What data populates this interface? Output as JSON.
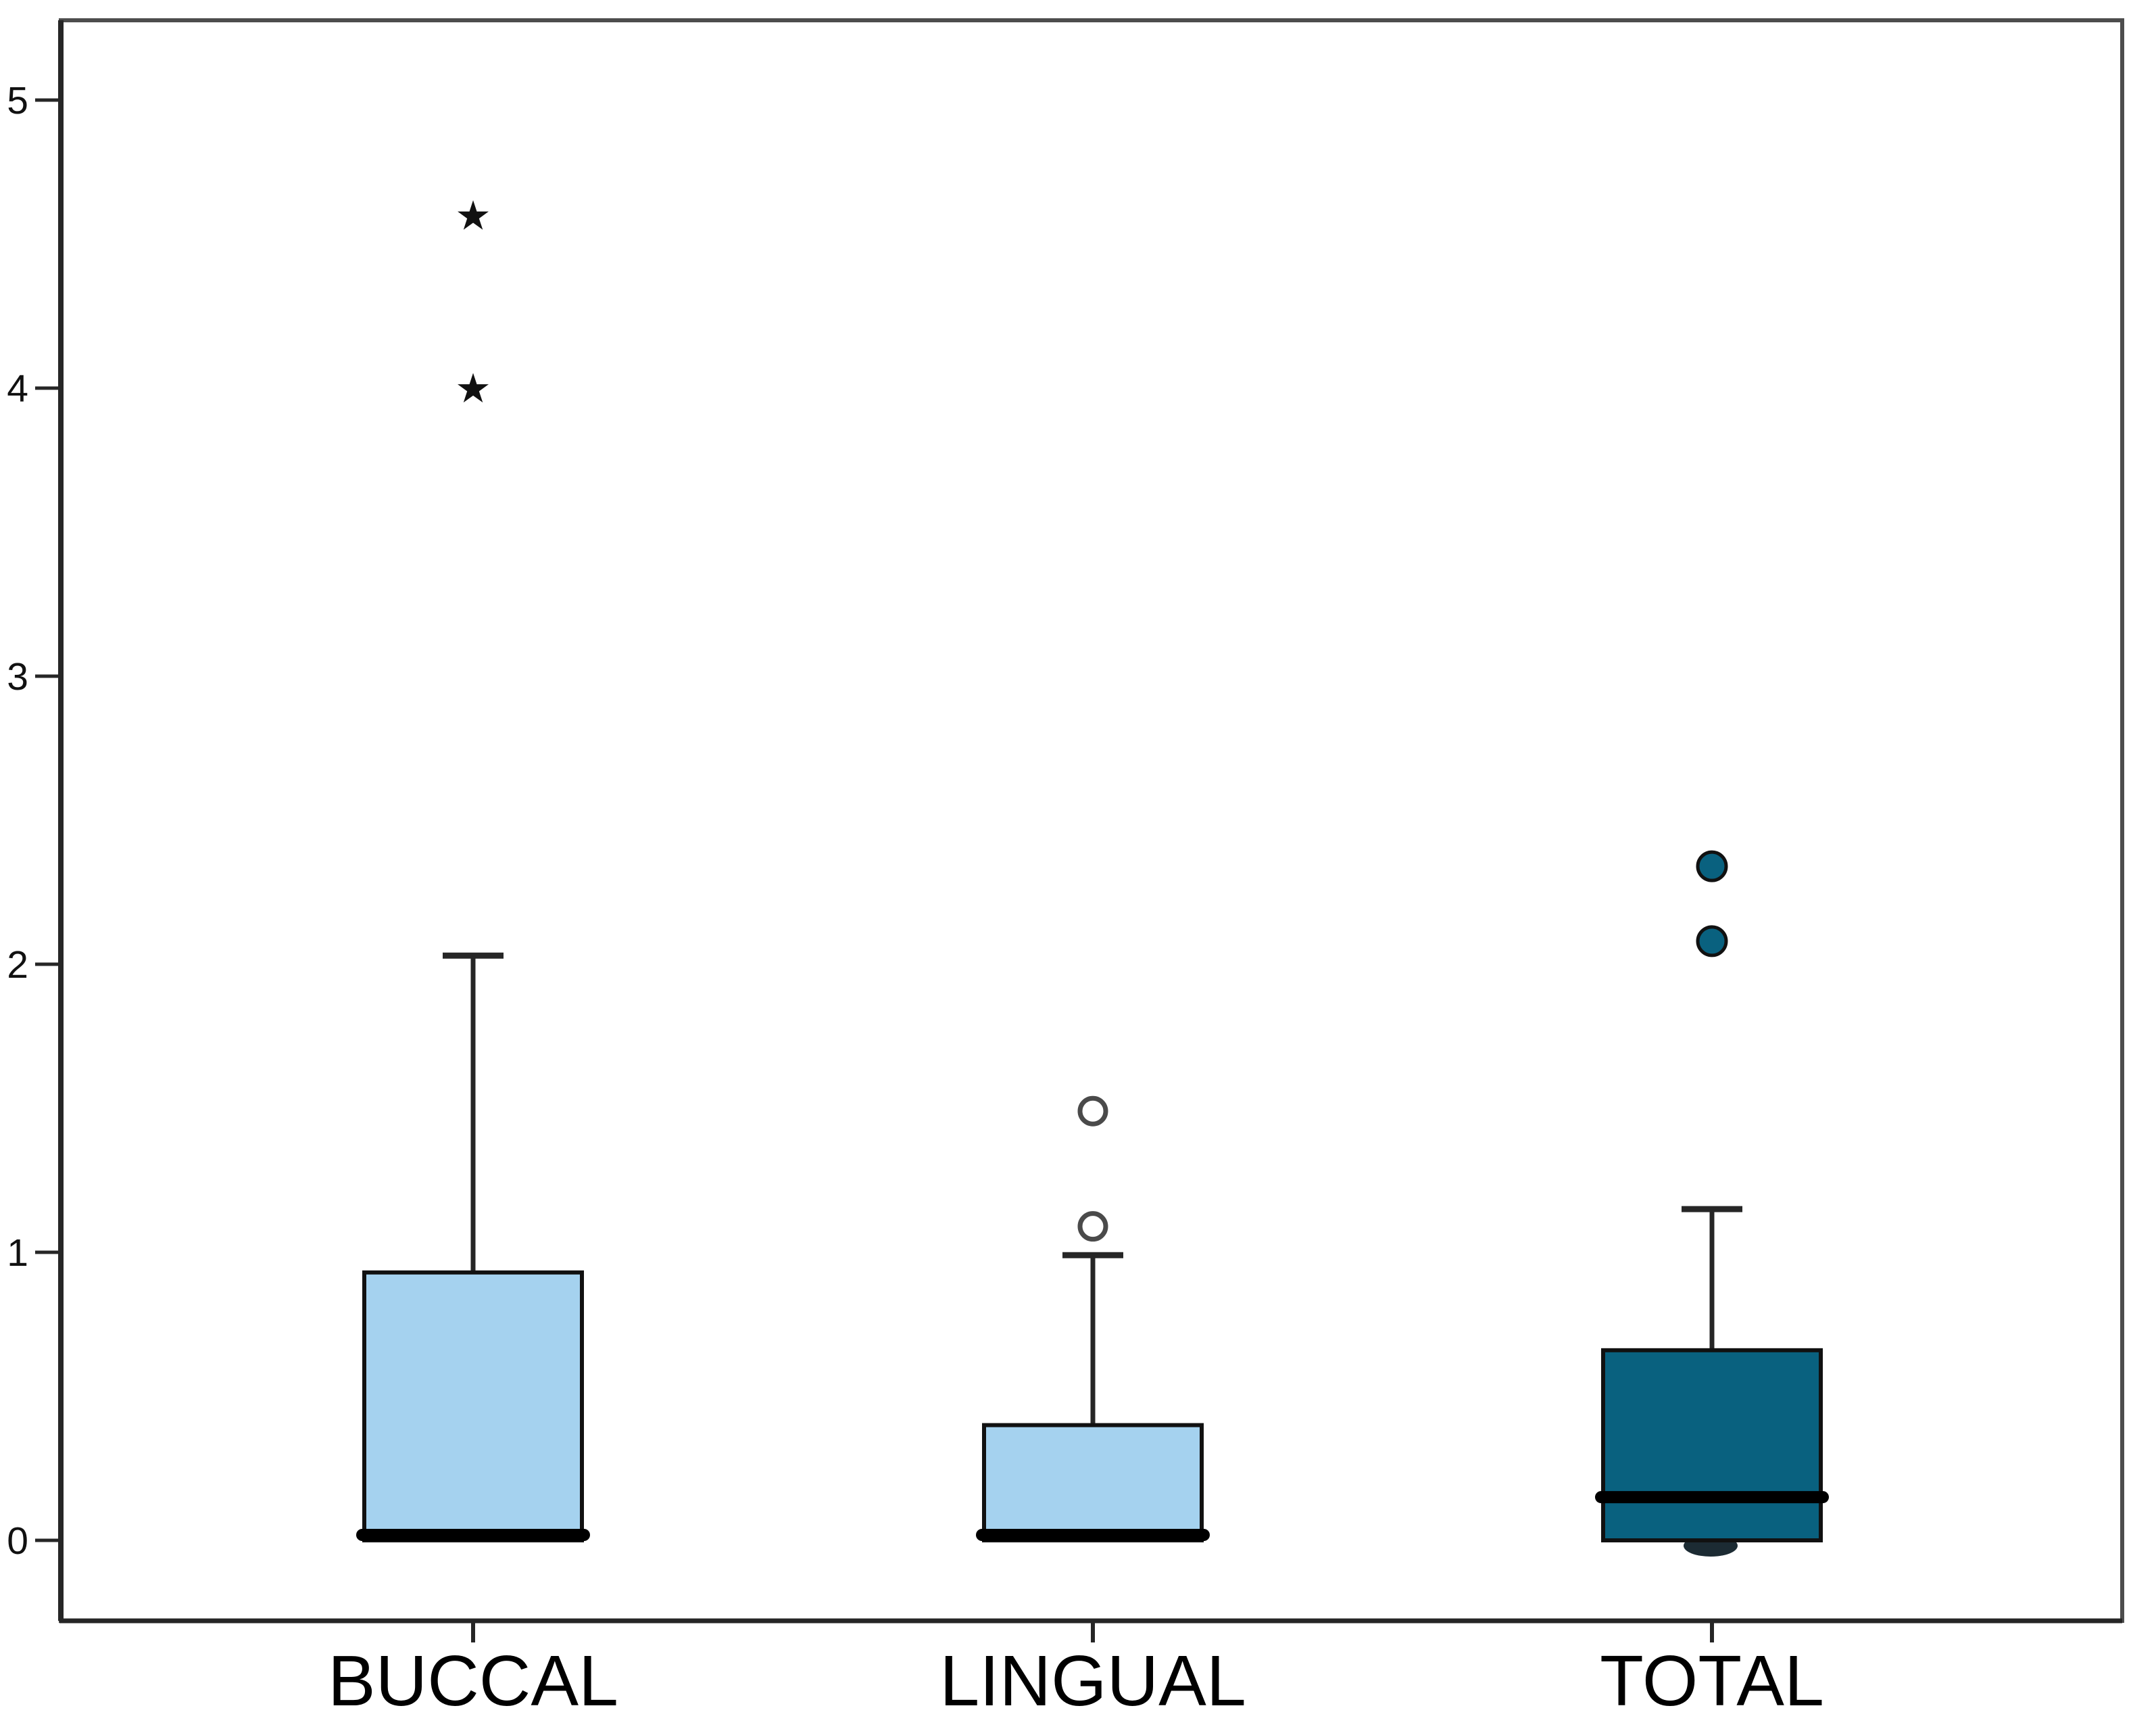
{
  "colors": {
    "box_light_blue": "#a5d2ef",
    "box_dark_teal": "#09617f",
    "frame_gray": "#4d4d4d",
    "axis_dark": "#262626",
    "text_black": "#111111",
    "outlier_open_stroke": "#4a4a4a",
    "hidden_marker_dark": "#1c2b33"
  },
  "chart_data": {
    "type": "boxplot",
    "title": "",
    "xlabel": "",
    "ylabel": "",
    "ylim": [
      0,
      5
    ],
    "yticks": [
      "0",
      "1",
      "2",
      "3",
      "4",
      "5"
    ],
    "grid": false,
    "legend": "none",
    "categories": [
      "BUCCAL",
      "LINGUAL",
      "TOTAL"
    ],
    "series": [
      {
        "category": "BUCCAL",
        "q1": 0,
        "median": 0,
        "q3": 0.93,
        "whisker_low": 0,
        "whisker_high": 2.03,
        "fill": "#a5d2ef",
        "outliers": [
          {
            "value": 4.0,
            "marker": "star"
          },
          {
            "value": 4.6,
            "marker": "star"
          }
        ]
      },
      {
        "category": "LINGUAL",
        "q1": 0,
        "median": 0,
        "q3": 0.4,
        "whisker_low": 0,
        "whisker_high": 0.99,
        "fill": "#a5d2ef",
        "outliers": [
          {
            "value": 1.09,
            "marker": "circle-open"
          },
          {
            "value": 1.49,
            "marker": "circle-open"
          }
        ]
      },
      {
        "category": "TOTAL",
        "q1": 0,
        "median": 0.15,
        "q3": 0.66,
        "whisker_low": 0,
        "whisker_high": 1.15,
        "fill": "#09617f",
        "partial_hidden_marker_at": 0,
        "outliers": [
          {
            "value": 2.08,
            "marker": "circle-filled"
          },
          {
            "value": 2.34,
            "marker": "circle-filled"
          }
        ]
      }
    ]
  }
}
